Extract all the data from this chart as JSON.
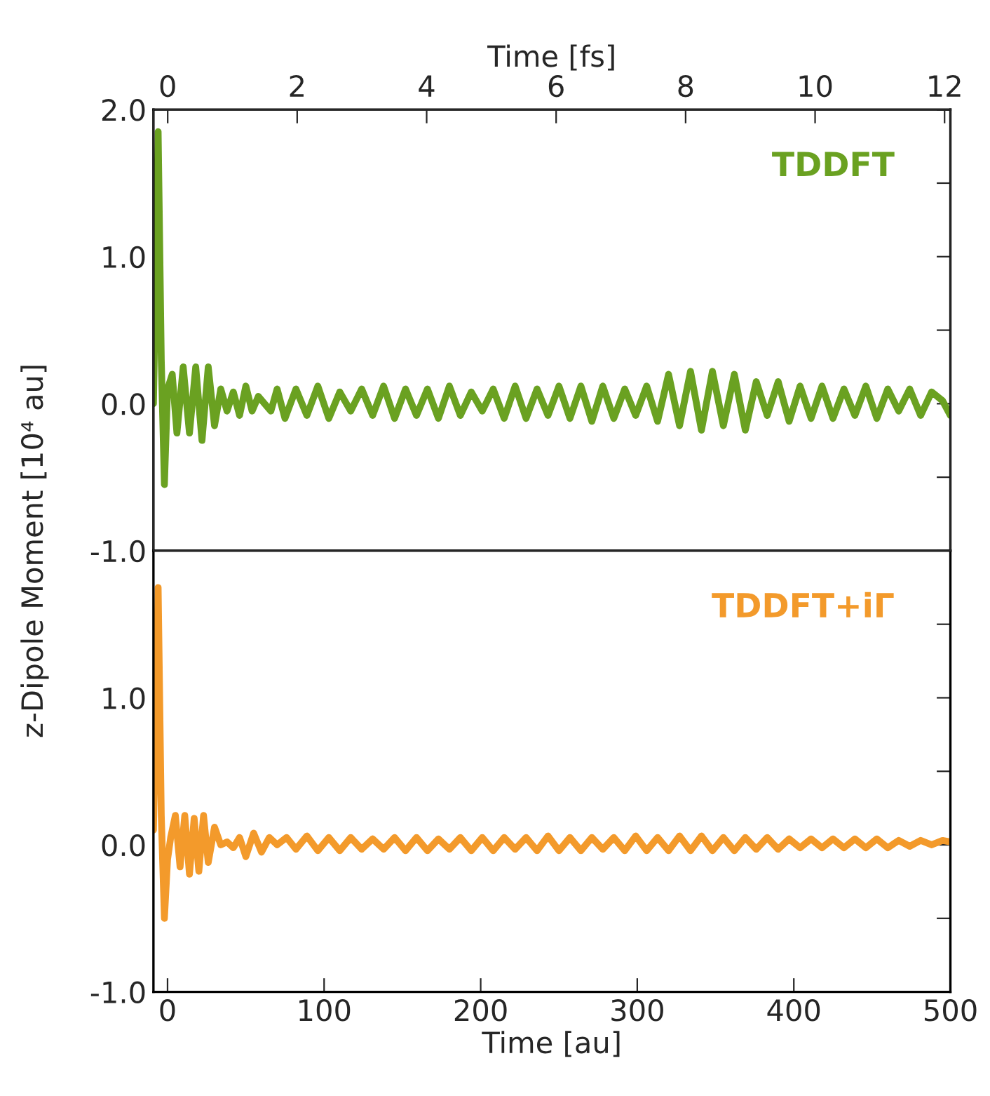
{
  "chart_data": [
    {
      "type": "line",
      "ylabel": "z-Dipole Moment [10⁴ au]",
      "x2label": "Time [fs]",
      "xlim": [
        -9,
        500
      ],
      "x2lim": [
        -0.22,
        12.09
      ],
      "x2ticks": [
        0,
        2,
        4,
        6,
        8,
        10,
        12
      ],
      "ylim": [
        -1,
        2
      ],
      "yticks": [
        {
          "value": -1,
          "label": "-1.0"
        },
        {
          "value": -0.5,
          "label": null
        },
        {
          "value": 0,
          "label": "0.0"
        },
        {
          "value": 0.5,
          "label": null
        },
        {
          "value": 1,
          "label": "1.0"
        },
        {
          "value": 1.5,
          "label": null
        },
        {
          "value": 2,
          "label": "2.0"
        }
      ],
      "tick_labels": "y",
      "grid": false,
      "series": [
        {
          "name": "TDDFT",
          "color": "#6aa121",
          "x": [
            -9,
            -6,
            -4,
            -2,
            0,
            3,
            6,
            10,
            14,
            18,
            22,
            26,
            30,
            34,
            38,
            42,
            46,
            50,
            54,
            58,
            62,
            66,
            70,
            75,
            82,
            89,
            96,
            103,
            110,
            117,
            124,
            131,
            138,
            145,
            152,
            159,
            166,
            173,
            180,
            187,
            194,
            201,
            208,
            215,
            222,
            229,
            236,
            243,
            250,
            257,
            264,
            271,
            278,
            285,
            292,
            299,
            306,
            313,
            320,
            327,
            334,
            341,
            348,
            355,
            362,
            369,
            376,
            383,
            390,
            397,
            404,
            411,
            418,
            425,
            432,
            439,
            446,
            453,
            460,
            467,
            474,
            481,
            488,
            495,
            500
          ],
          "values": [
            0,
            1.85,
            0.3,
            -0.55,
            0.1,
            0.2,
            -0.2,
            0.25,
            -0.2,
            0.25,
            -0.25,
            0.25,
            -0.15,
            0.1,
            -0.05,
            0.08,
            -0.08,
            0.12,
            -0.05,
            0.05,
            0,
            -0.05,
            0.1,
            -0.1,
            0.1,
            -0.08,
            0.12,
            -0.1,
            0.08,
            -0.05,
            0.1,
            -0.08,
            0.12,
            -0.1,
            0.1,
            -0.08,
            0.1,
            -0.1,
            0.12,
            -0.08,
            0.08,
            -0.05,
            0.1,
            -0.1,
            0.12,
            -0.1,
            0.1,
            -0.08,
            0.12,
            -0.1,
            0.12,
            -0.12,
            0.12,
            -0.1,
            0.1,
            -0.08,
            0.12,
            -0.12,
            0.2,
            -0.15,
            0.22,
            -0.18,
            0.22,
            -0.15,
            0.2,
            -0.18,
            0.15,
            -0.08,
            0.15,
            -0.12,
            0.12,
            -0.1,
            0.12,
            -0.1,
            0.1,
            -0.08,
            0.12,
            -0.1,
            0.1,
            -0.05,
            0.1,
            -0.08,
            0.08,
            0.02,
            -0.08
          ]
        }
      ]
    },
    {
      "type": "line",
      "xlabel": "Time [au]",
      "xlim": [
        -9,
        500
      ],
      "xticks": [
        0,
        100,
        200,
        300,
        400,
        500
      ],
      "ylim": [
        -1,
        2
      ],
      "yticks": [
        {
          "value": -1,
          "label": "-1.0"
        },
        {
          "value": -0.5,
          "label": null
        },
        {
          "value": 0,
          "label": "0.0"
        },
        {
          "value": 0.5,
          "label": null
        },
        {
          "value": 1,
          "label": "1.0"
        },
        {
          "value": 1.5,
          "label": null
        },
        {
          "value": 2,
          "label": null
        }
      ],
      "grid": false,
      "series": [
        {
          "name": "TDDFT+iΓ",
          "color": "#f39a2b",
          "x": [
            -9,
            -6,
            -4,
            -2,
            0,
            2,
            5,
            8,
            11,
            14,
            17,
            20,
            23,
            26,
            30,
            34,
            38,
            42,
            46,
            50,
            55,
            60,
            65,
            70,
            76,
            82,
            89,
            96,
            103,
            110,
            117,
            124,
            131,
            138,
            145,
            152,
            159,
            166,
            173,
            180,
            187,
            194,
            201,
            208,
            215,
            222,
            229,
            236,
            243,
            250,
            257,
            264,
            271,
            278,
            285,
            292,
            299,
            306,
            313,
            320,
            327,
            334,
            341,
            348,
            355,
            362,
            369,
            376,
            383,
            390,
            397,
            404,
            411,
            418,
            425,
            432,
            439,
            446,
            453,
            460,
            467,
            474,
            481,
            488,
            495,
            500
          ],
          "values": [
            0.1,
            1.75,
            0.2,
            -0.5,
            -0.1,
            0.05,
            0.2,
            -0.15,
            0.2,
            -0.2,
            0.18,
            -0.18,
            0.2,
            -0.12,
            0.12,
            0,
            0.02,
            -0.02,
            0.05,
            -0.08,
            0.08,
            -0.05,
            0.05,
            0,
            0.05,
            -0.03,
            0.06,
            -0.04,
            0.05,
            -0.04,
            0.05,
            -0.03,
            0.04,
            -0.03,
            0.05,
            -0.04,
            0.05,
            -0.04,
            0.04,
            -0.03,
            0.05,
            -0.04,
            0.05,
            -0.04,
            0.05,
            -0.03,
            0.05,
            -0.04,
            0.06,
            -0.04,
            0.05,
            -0.04,
            0.05,
            -0.03,
            0.05,
            -0.04,
            0.06,
            -0.04,
            0.05,
            -0.04,
            0.06,
            -0.04,
            0.06,
            -0.04,
            0.05,
            -0.04,
            0.05,
            -0.03,
            0.05,
            -0.03,
            0.04,
            -0.02,
            0.04,
            -0.02,
            0.04,
            -0.02,
            0.04,
            -0.02,
            0.04,
            -0.02,
            0.03,
            -0.01,
            0.03,
            0,
            0.03,
            0.02
          ]
        }
      ]
    }
  ]
}
